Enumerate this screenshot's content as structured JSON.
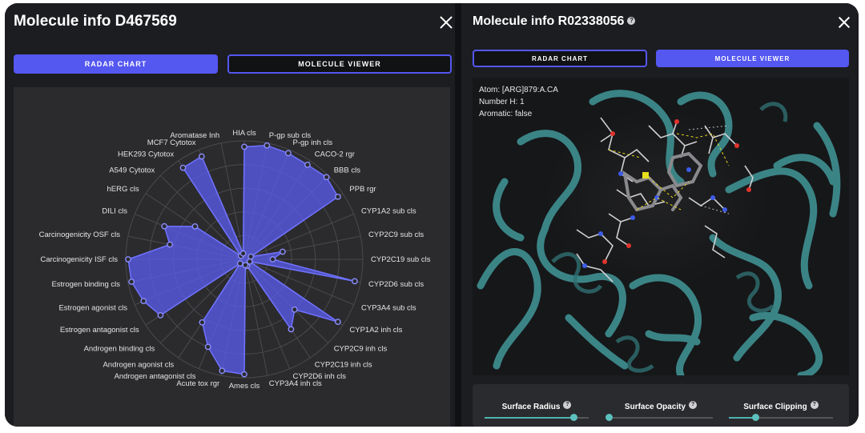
{
  "left_panel": {
    "title": "Molecule info D467569",
    "tabs": [
      {
        "label": "RADAR CHART",
        "active": true
      },
      {
        "label": "MOLECULE VIEWER",
        "active": false
      }
    ]
  },
  "right_panel": {
    "title": "Molecule info R02338056",
    "tabs": [
      {
        "label": "RADAR CHART",
        "active": false
      },
      {
        "label": "MOLECULE VIEWER",
        "active": true
      }
    ],
    "atom_info": {
      "atom": "Atom: [ARG]879:A.CA",
      "number_h": "Number H: 1",
      "aromatic": "Aromatic: false"
    },
    "controls": [
      {
        "label": "Surface Radius",
        "value": 0.85
      },
      {
        "label": "Surface Opacity",
        "value": 0.0
      },
      {
        "label": "Surface Clipping",
        "value": 0.25
      }
    ]
  },
  "colors": {
    "accent": "#5457f0",
    "radar_fill": "#5a5be8",
    "protein": "#3d8a8c",
    "background": "#1c1d20"
  },
  "chart_data": {
    "type": "radar",
    "categories": [
      "HIA cls",
      "P-gp sub cls",
      "P-gp inh cls",
      "CACO-2 rgr",
      "BBB cls",
      "PPB rgr",
      "CYP1A2 sub cls",
      "CYP2C9 sub cls",
      "CYP2C19 sub cls",
      "CYP2D6 sub cls",
      "CYP3A4 sub cls",
      "CYP1A2 inh cls",
      "CYP2C9 inh cls",
      "CYP2C19 inh cls",
      "CYP2D6 inh cls",
      "CYP3A4 inh cls",
      "Ames cls",
      "Acute tox rgr",
      "Androgen antagonist cls",
      "Androgen agonist cls",
      "Androgen binding cls",
      "Estrogen antagonist cls",
      "Estrogen agonist cls",
      "Estrogen binding cls",
      "Carcinogenicity ISF cls",
      "Carcinogenicity OSF cls",
      "DILI cls",
      "hERG cls",
      "A549 Cytotox",
      "HEK293 Cytotox",
      "MCF7 Cytotox",
      "Aromatase Inh"
    ],
    "values": [
      0.95,
      0.98,
      0.97,
      0.96,
      0.98,
      0.95,
      0.06,
      0.33,
      0.24,
      0.95,
      0.05,
      0.95,
      0.6,
      0.71,
      0.06,
      0.05,
      0.97,
      0.96,
      0.8,
      0.64,
      0.05,
      0.85,
      0.92,
      0.97,
      0.98,
      0.64,
      0.73,
      0.5,
      0.04,
      0.93,
      0.94,
      0.05
    ],
    "range": [
      0,
      1
    ],
    "grid": true
  }
}
